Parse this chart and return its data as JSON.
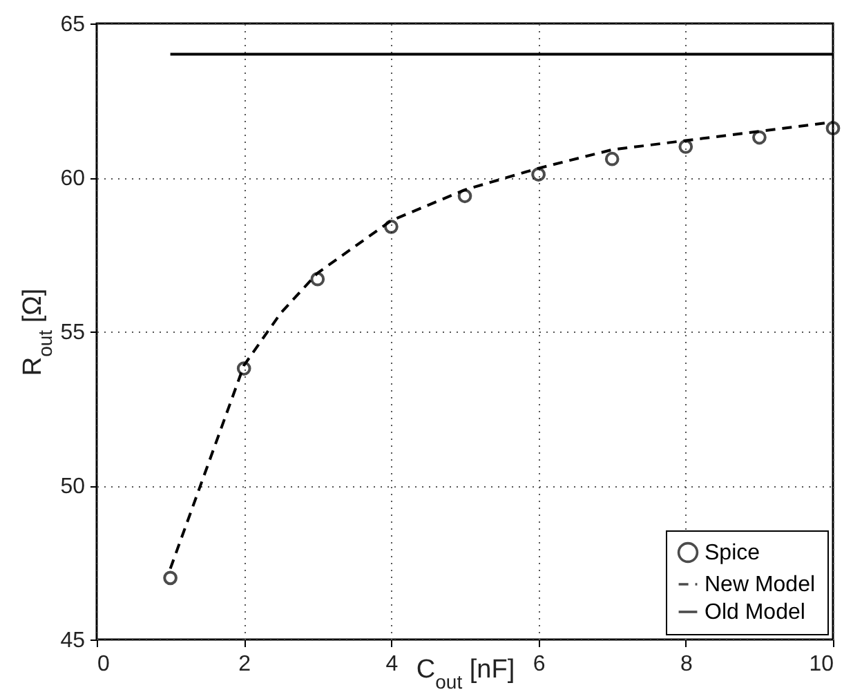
{
  "chart_data": {
    "type": "line",
    "xlabel": "C$_{out}$ [nF]",
    "ylabel": "R$_{out}$ [Ω]",
    "xlim": [
      0,
      10
    ],
    "xticks": [
      0,
      2,
      4,
      6,
      8,
      10
    ],
    "ylim": [
      45,
      65
    ],
    "yticks": [
      45,
      50,
      55,
      60,
      65
    ],
    "grid": true,
    "legend": "bottom right",
    "series": [
      {
        "name": "Spice",
        "type": "scatter",
        "marker": "circle",
        "color": "#000000",
        "x": [
          1,
          2,
          3,
          4,
          5,
          6,
          7,
          8,
          9,
          10
        ],
        "values": [
          47.0,
          53.8,
          56.7,
          58.4,
          59.4,
          60.1,
          60.6,
          61.0,
          61.3,
          61.6
        ]
      },
      {
        "name": "New Model",
        "line_style": "dashed",
        "color": "#000000",
        "x": [
          1,
          1.5,
          2,
          2.5,
          3,
          4,
          5,
          6,
          7,
          8,
          9,
          10
        ],
        "values": [
          47.3,
          50.6,
          53.9,
          55.6,
          56.9,
          58.6,
          59.6,
          60.3,
          60.9,
          61.2,
          61.5,
          61.8
        ]
      },
      {
        "name": "Old Model",
        "line_style": "solid",
        "color": "#000000",
        "x": [
          1,
          10
        ],
        "values": [
          64,
          64
        ]
      }
    ]
  }
}
